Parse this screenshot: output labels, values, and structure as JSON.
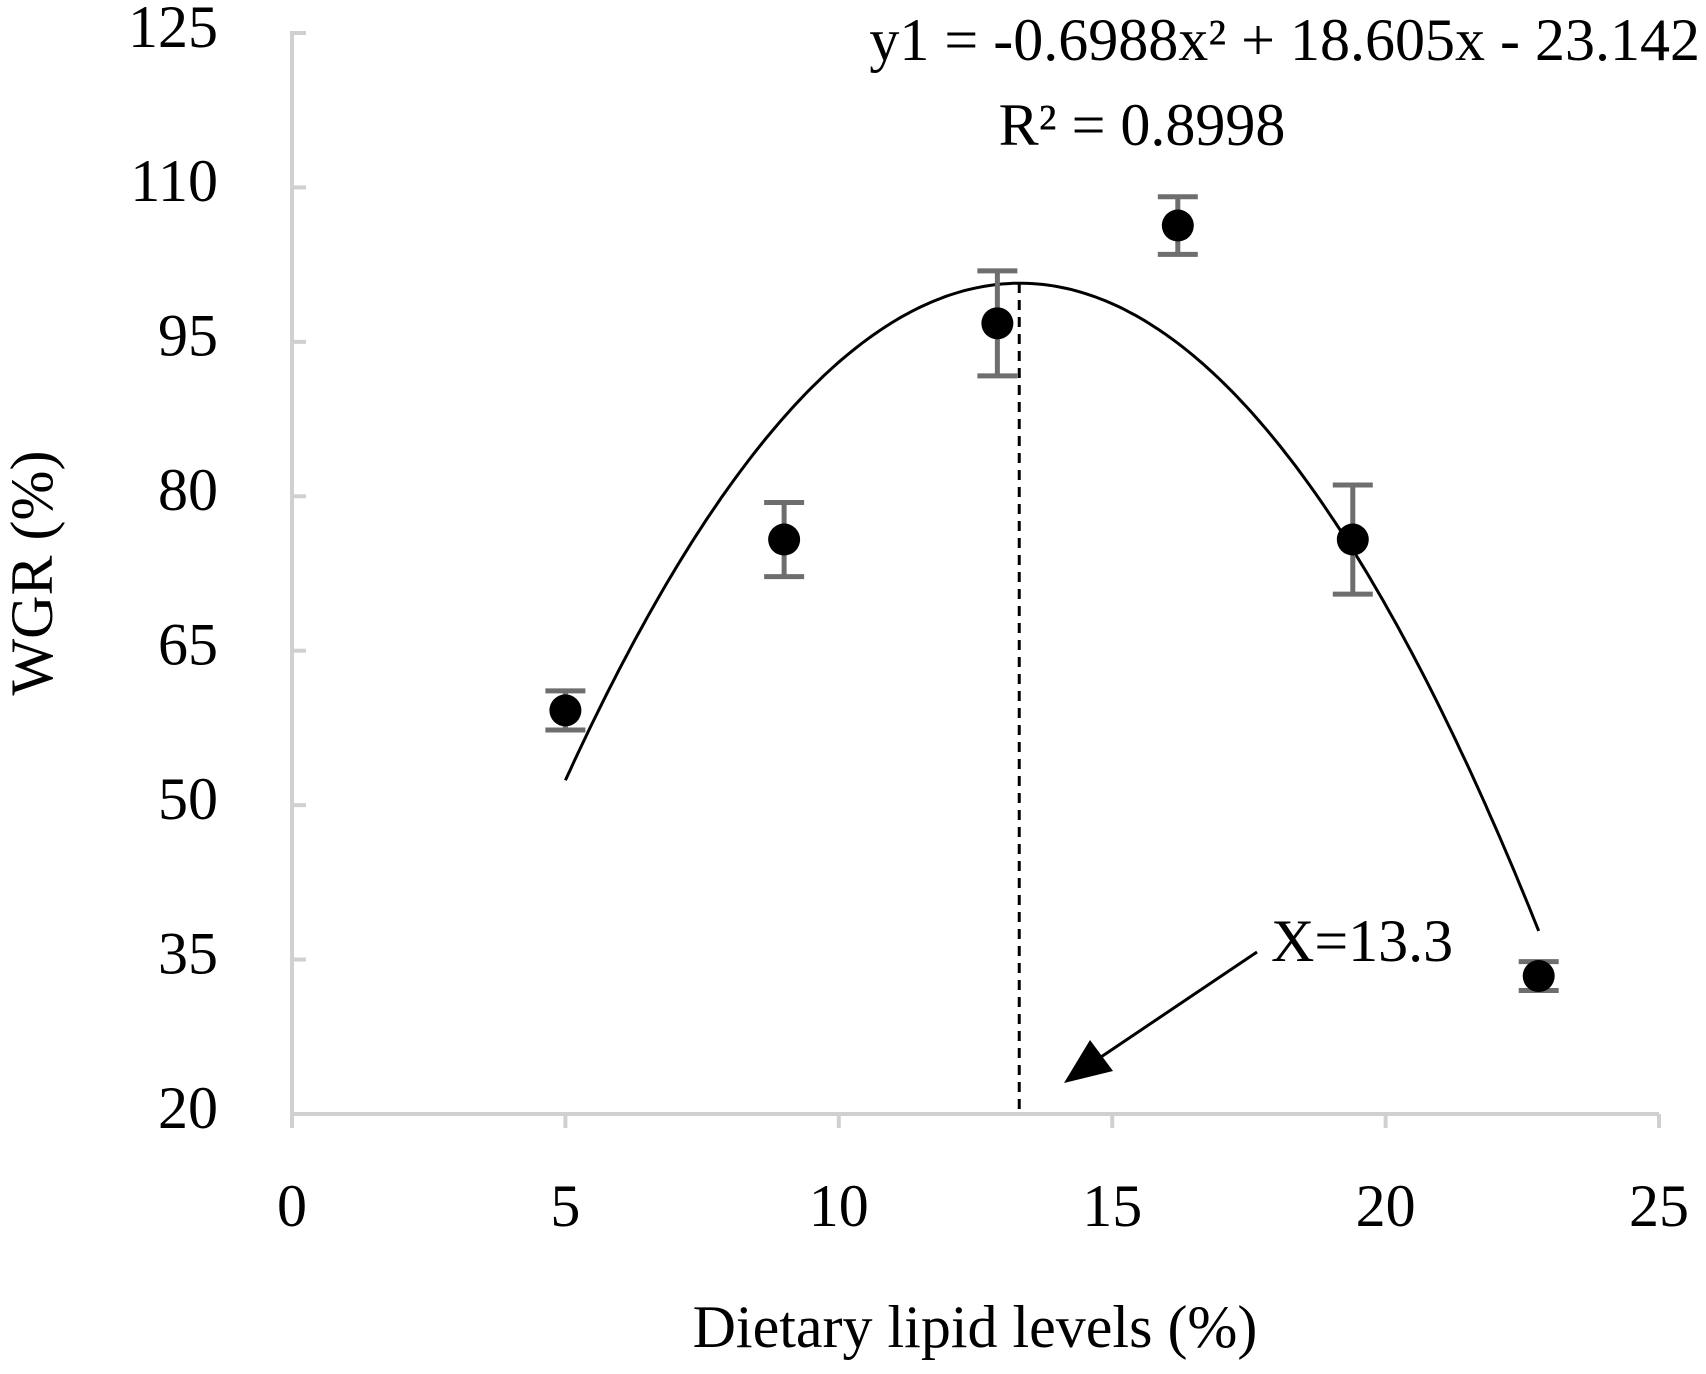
{
  "chart_data": {
    "type": "scatter",
    "x_label": "Dietary lipid levels (%)",
    "y_label": "WGR (%)",
    "x": [
      5,
      9,
      12.9,
      16.2,
      19.4,
      22.8
    ],
    "values": [
      59.2,
      75.8,
      96.8,
      106.3,
      75.8,
      33.4
    ],
    "errors": [
      1.9,
      3.6,
      5.1,
      2.8,
      5.3,
      1.4
    ],
    "color": "#000000",
    "error_color": "#6e6e6e",
    "xlim": [
      0,
      25
    ],
    "xticks": [
      0,
      5,
      10,
      15,
      20,
      25
    ],
    "ylim": [
      20,
      125
    ],
    "yticks": [
      20,
      35,
      50,
      65,
      80,
      95,
      110,
      125
    ],
    "fit": {
      "equation": "y1 = -0.6988x² + 18.605x - 23.142",
      "r_squared": "R² = 0.8998"
    },
    "vline": {
      "value": 13.3,
      "label": "X=13.3"
    }
  }
}
